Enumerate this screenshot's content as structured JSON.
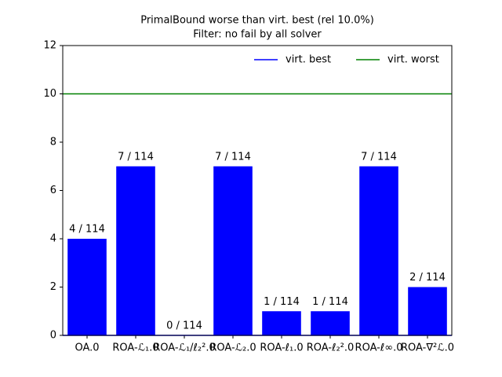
{
  "chart_data": {
    "type": "bar",
    "title": "PrimalBound worse than virt. best (rel 10.0%)",
    "subtitle": "Filter: no fail by all solver",
    "categories": [
      "OA.0",
      "ROA-ℒ₁.0",
      "ROA-ℒ₁/ℓ₂².0",
      "ROA-ℒ₂.0",
      "ROA-ℓ₁.0",
      "ROA-ℓ₂².0",
      "ROA-ℓ∞.0",
      "ROA-∇²ℒ.0"
    ],
    "values": [
      4,
      7,
      0,
      7,
      1,
      1,
      7,
      2
    ],
    "value_labels": [
      "4 / 114",
      "7 / 114",
      "0 / 114",
      "7 / 114",
      "1 / 114",
      "1 / 114",
      "7 / 114",
      "2 / 114"
    ],
    "color": "#0000ff",
    "lines": [
      {
        "name": "virt. best",
        "color": "#0000ff",
        "value": 0
      },
      {
        "name": "virt. worst",
        "color": "#008000",
        "value": 10
      }
    ],
    "legend": "upper right",
    "ylim": [
      0,
      12
    ],
    "yticks": [
      0,
      2,
      4,
      6,
      8,
      10,
      12
    ]
  }
}
